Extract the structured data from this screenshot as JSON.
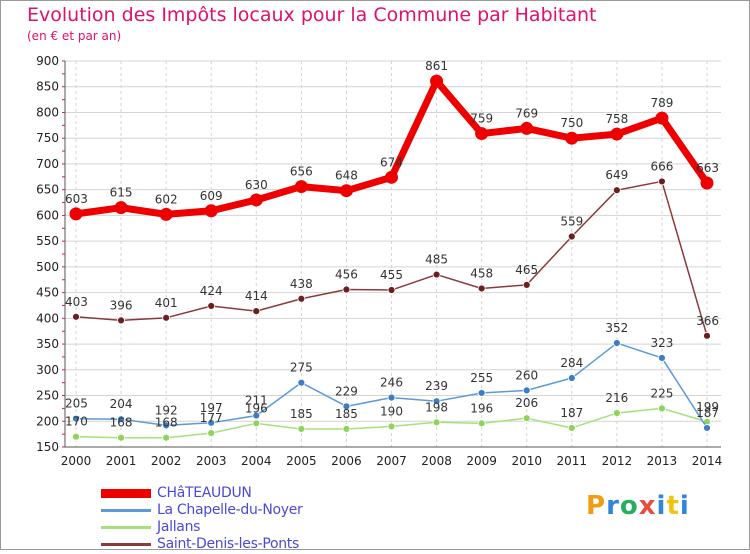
{
  "header": {
    "title": "Evolution des Impôts locaux pour la Commune par Habitant",
    "subtitle": "(en € et par an)"
  },
  "logo": {
    "letters": [
      "P",
      "r",
      "o",
      "x",
      "i",
      "t",
      "i"
    ],
    "colors": [
      "#f39c12",
      "#2e86de",
      "#27ae60",
      "#e74c3c",
      "#2e86de",
      "#f1c40f",
      "#2e86de"
    ]
  },
  "chart_data": {
    "type": "line",
    "title": "Evolution des Impôts locaux pour la Commune par Habitant",
    "subtitle": "(en € et par an)",
    "xlabel": "",
    "ylabel": "",
    "ylim": [
      150,
      900
    ],
    "yticks": [
      150,
      200,
      250,
      300,
      350,
      400,
      450,
      500,
      550,
      600,
      650,
      700,
      750,
      800,
      850,
      900
    ],
    "grid": true,
    "legend_position": "bottom-left",
    "categories": [
      "2000",
      "2001",
      "2002",
      "2003",
      "2004",
      "2005",
      "2006",
      "2007",
      "2008",
      "2009",
      "2010",
      "2011",
      "2012",
      "2013",
      "2014"
    ],
    "series": [
      {
        "name": "CHâTEAUDUN",
        "color": "#ee0000",
        "marker": "#ee0000",
        "values": [
          603,
          615,
          602,
          609,
          630,
          656,
          648,
          674,
          861,
          759,
          769,
          750,
          758,
          789,
          663
        ]
      },
      {
        "name": "La Chapelle-du-Noyer",
        "color": "#5b9bd5",
        "marker": "#3c7dc4",
        "values": [
          205,
          204,
          192,
          197,
          211,
          275,
          229,
          246,
          239,
          255,
          260,
          284,
          352,
          323,
          187
        ]
      },
      {
        "name": "Jallans",
        "color": "#a6e07c",
        "marker": "#8fd35a",
        "values": [
          170,
          168,
          168,
          177,
          196,
          185,
          185,
          190,
          198,
          196,
          206,
          187,
          216,
          225,
          199
        ]
      },
      {
        "name": "Saint-Denis-les-Ponts",
        "color": "#8b3a3a",
        "marker": "#6b1f1f",
        "values": [
          403,
          396,
          401,
          424,
          414,
          438,
          456,
          455,
          485,
          458,
          465,
          559,
          649,
          666,
          366
        ]
      }
    ]
  }
}
